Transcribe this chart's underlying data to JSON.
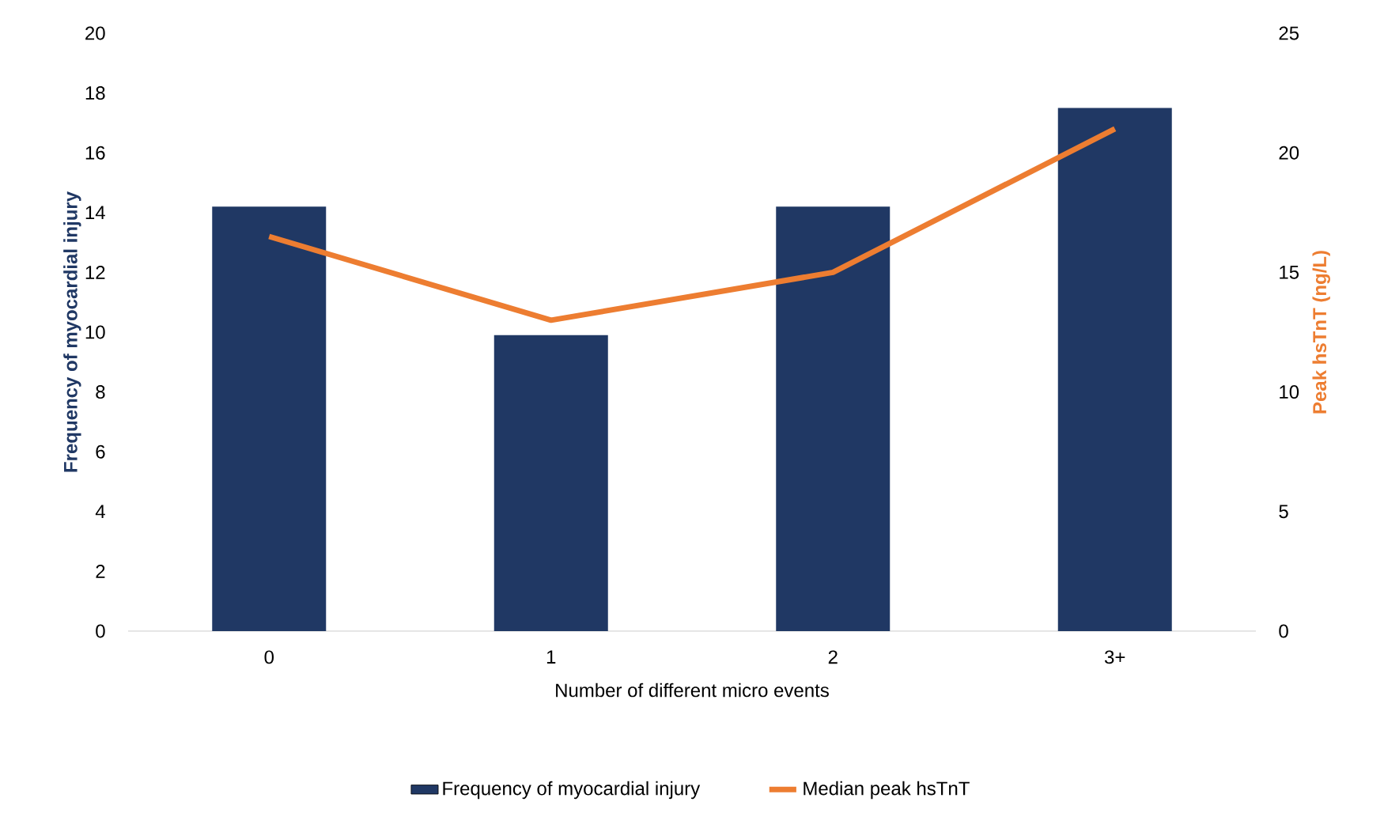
{
  "chart_data": {
    "type": "bar",
    "xlabel": "Number of different micro events",
    "ylabel": "Frequency of myocardial injury",
    "y2label": "Peak hsTnT (ng/L)",
    "categories": [
      "0",
      "1",
      "2",
      "3+"
    ],
    "series": [
      {
        "name": "Frequency of myocardial injury",
        "color": "#203864",
        "values": [
          14.2,
          9.9,
          14.2,
          17.5
        ]
      },
      {
        "name": "Median peak hsTnT",
        "type": "line",
        "axis": "y2",
        "color": "#ed7d31",
        "values": [
          16.5,
          13.0,
          15.0,
          21.0
        ]
      }
    ],
    "ylim": [
      0,
      20
    ],
    "yticks": [
      0,
      2,
      4,
      6,
      8,
      10,
      12,
      14,
      16,
      18,
      20
    ],
    "y2lim": [
      0,
      25
    ],
    "y2ticks": [
      0,
      5,
      10,
      15,
      20,
      25
    ],
    "legend": "bottom"
  }
}
